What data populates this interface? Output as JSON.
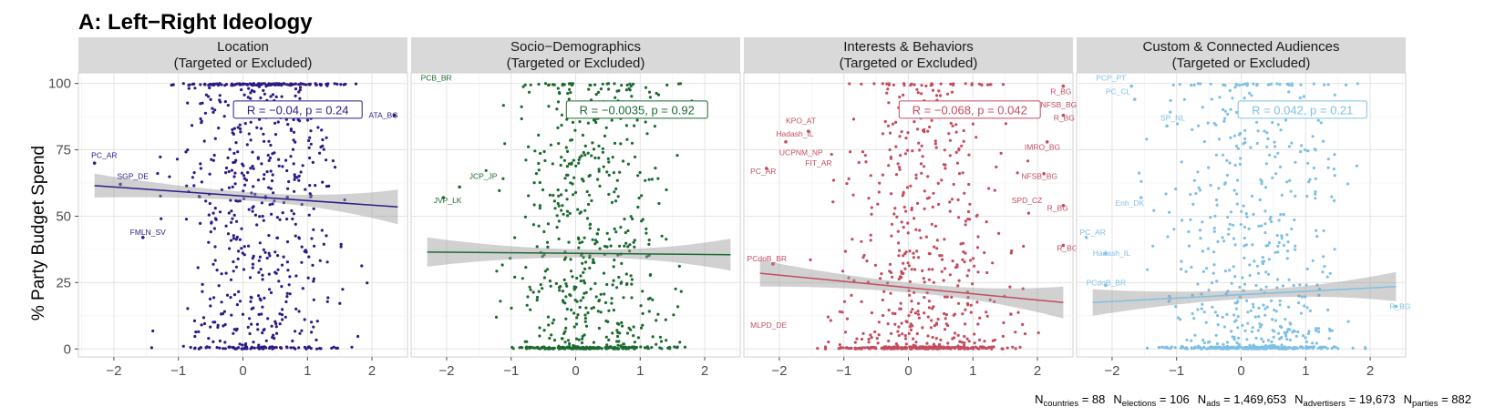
{
  "chart_data": {
    "type": "scatter",
    "title": "A: Left−Right Ideology",
    "ylabel": "% Party Budget Spend",
    "xlim": [
      -2.55,
      2.55
    ],
    "ylim": [
      -3,
      104
    ],
    "x_ticks": [
      {
        "v": -2,
        "t": "−2"
      },
      {
        "v": -1,
        "t": "−1"
      },
      {
        "v": 0,
        "t": "0"
      },
      {
        "v": 1,
        "t": "1"
      },
      {
        "v": 2,
        "t": "2"
      }
    ],
    "y_ticks": [
      {
        "v": 0,
        "t": "0"
      },
      {
        "v": 25,
        "t": "25"
      },
      {
        "v": 50,
        "t": "50"
      },
      {
        "v": 75,
        "t": "75"
      },
      {
        "v": 100,
        "t": "100"
      }
    ],
    "grid": true,
    "legend": "none",
    "caption_parts": [
      {
        "main": "N",
        "sub": "countries",
        "rest": " = 88"
      },
      {
        "main": "N",
        "sub": "elections",
        "rest": " = 106"
      },
      {
        "main": "N",
        "sub": "ads",
        "rest": " = 1,469,653"
      },
      {
        "main": "N",
        "sub": "advertisers",
        "rest": " = 19,673"
      },
      {
        "main": "N",
        "sub": "parties",
        "rest": " = 882"
      }
    ],
    "panels": [
      {
        "strip": [
          "Location",
          "(Targeted or Excluded)"
        ],
        "color": "#2e1a87",
        "r_text": "R = −0.04, p = 0.24",
        "r_x": 0.85,
        "r_y": 90,
        "fit": {
          "x0": -2.3,
          "y0": 61.5,
          "x1": 2.4,
          "y1": 53.5,
          "se0": 4.5,
          "semid": 1.6,
          "se1": 6.5
        },
        "profile": {
          "zero": 0.1,
          "hundred": 0.2,
          "spread": 0.9
        },
        "seed": 11,
        "labels": [
          {
            "x": -2.35,
            "y": 72,
            "t": "PC_AR"
          },
          {
            "x": -1.95,
            "y": 64,
            "t": "SGP_DE"
          },
          {
            "x": -1.75,
            "y": 43,
            "t": "FMLN_SV"
          },
          {
            "x": 1.95,
            "y": 87,
            "t": "ATA_BG"
          }
        ],
        "highlight": [
          {
            "x": -2.3,
            "y": 70
          },
          {
            "x": -1.9,
            "y": 62
          },
          {
            "x": -1.55,
            "y": 42
          },
          {
            "x": 2.35,
            "y": 88
          }
        ]
      },
      {
        "strip": [
          "Socio−Demographics",
          "(Targeted or Excluded)"
        ],
        "color": "#1b6b2f",
        "r_text": "R = −0.0035, p = 0.92",
        "r_x": 0.95,
        "r_y": 90,
        "fit": {
          "x0": -2.3,
          "y0": 36.5,
          "x1": 2.4,
          "y1": 35.5,
          "se0": 5.5,
          "semid": 1.5,
          "se1": 6.0
        },
        "profile": {
          "zero": 0.2,
          "hundred": 0.06,
          "spread": 0.9
        },
        "seed": 23,
        "labels": [
          {
            "x": -2.4,
            "y": 101,
            "t": "PCB_BR"
          },
          {
            "x": -1.65,
            "y": 64,
            "t": "JCP_JP"
          },
          {
            "x": -2.2,
            "y": 55,
            "t": "JVP_LK"
          }
        ],
        "highlight": [
          {
            "x": -1.8,
            "y": 61
          },
          {
            "x": -2.05,
            "y": 57
          }
        ]
      },
      {
        "strip": [
          "Interests & Behaviors",
          "(Targeted or Excluded)"
        ],
        "color": "#c44c5e",
        "r_text": "R = −0.068, p = 0.042",
        "r_x": 0.95,
        "r_y": 90,
        "fit": {
          "x0": -2.3,
          "y0": 28.5,
          "x1": 2.4,
          "y1": 17.5,
          "se0": 5.0,
          "semid": 1.8,
          "se1": 6.0
        },
        "profile": {
          "zero": 0.3,
          "hundred": 0.03,
          "spread": 1.0
        },
        "seed": 37,
        "labels": [
          {
            "x": 2.2,
            "y": 96,
            "t": "R_BG"
          },
          {
            "x": 2.05,
            "y": 91,
            "t": "NFSB_BG"
          },
          {
            "x": 2.25,
            "y": 86,
            "t": "R_BG"
          },
          {
            "x": -1.9,
            "y": 85,
            "t": "KPO_AT"
          },
          {
            "x": -2.05,
            "y": 80,
            "t": "Hadash_IL"
          },
          {
            "x": -2.0,
            "y": 73,
            "t": "UCPNM_NP"
          },
          {
            "x": -1.6,
            "y": 69,
            "t": "FIT_AR"
          },
          {
            "x": 1.8,
            "y": 75,
            "t": "IMRO_BG"
          },
          {
            "x": -2.45,
            "y": 66,
            "t": "PC_AR"
          },
          {
            "x": 1.75,
            "y": 64,
            "t": "NFSB_BG"
          },
          {
            "x": 1.6,
            "y": 55,
            "t": "SPD_CZ"
          },
          {
            "x": 2.15,
            "y": 52,
            "t": "R_BG"
          },
          {
            "x": 2.3,
            "y": 37,
            "t": "R_BG"
          },
          {
            "x": -2.5,
            "y": 33,
            "t": "PCdoB_BR"
          },
          {
            "x": -2.45,
            "y": 8,
            "t": "MLPD_DE"
          }
        ],
        "highlight": [
          {
            "x": 2.4,
            "y": 99
          },
          {
            "x": 2.4,
            "y": 88
          },
          {
            "x": -1.55,
            "y": 82
          },
          {
            "x": -1.9,
            "y": 78
          },
          {
            "x": 2.15,
            "y": 78
          },
          {
            "x": 2.1,
            "y": 66
          },
          {
            "x": 2.4,
            "y": 54
          },
          {
            "x": 2.4,
            "y": 39
          },
          {
            "x": -2.1,
            "y": 32
          },
          {
            "x": -2.2,
            "y": 68
          }
        ]
      },
      {
        "strip": [
          "Custom & Connected Audiences",
          "(Targeted or Excluded)"
        ],
        "color": "#7ec0e4",
        "r_text": "R = 0.042, p = 0.21",
        "r_x": 0.95,
        "r_y": 90,
        "fit": {
          "x0": -2.3,
          "y0": 17.5,
          "x1": 2.4,
          "y1": 23.5,
          "se0": 5.0,
          "semid": 1.6,
          "se1": 5.5
        },
        "profile": {
          "zero": 0.3,
          "hundred": 0.04,
          "spread": 1.0
        },
        "seed": 53,
        "labels": [
          {
            "x": -2.25,
            "y": 101,
            "t": "PCP_PT"
          },
          {
            "x": -2.1,
            "y": 96,
            "t": "PC_CL"
          },
          {
            "x": -1.25,
            "y": 86,
            "t": "SP_NL"
          },
          {
            "x": -1.95,
            "y": 54,
            "t": "Enh_DK"
          },
          {
            "x": -2.5,
            "y": 43,
            "t": "PC_AR"
          },
          {
            "x": -2.3,
            "y": 35,
            "t": "Hadash_IL"
          },
          {
            "x": -2.4,
            "y": 24,
            "t": "PCdoB_BR"
          },
          {
            "x": 2.3,
            "y": 15,
            "t": "R_BG"
          }
        ],
        "highlight": [
          {
            "x": -1.7,
            "y": 99
          },
          {
            "x": -1.65,
            "y": 94
          },
          {
            "x": -1.15,
            "y": 84
          },
          {
            "x": -1.55,
            "y": 57
          },
          {
            "x": -2.4,
            "y": 42
          },
          {
            "x": -2.1,
            "y": 36
          },
          {
            "x": -2.1,
            "y": 24
          },
          {
            "x": 2.4,
            "y": 16
          }
        ]
      }
    ]
  }
}
